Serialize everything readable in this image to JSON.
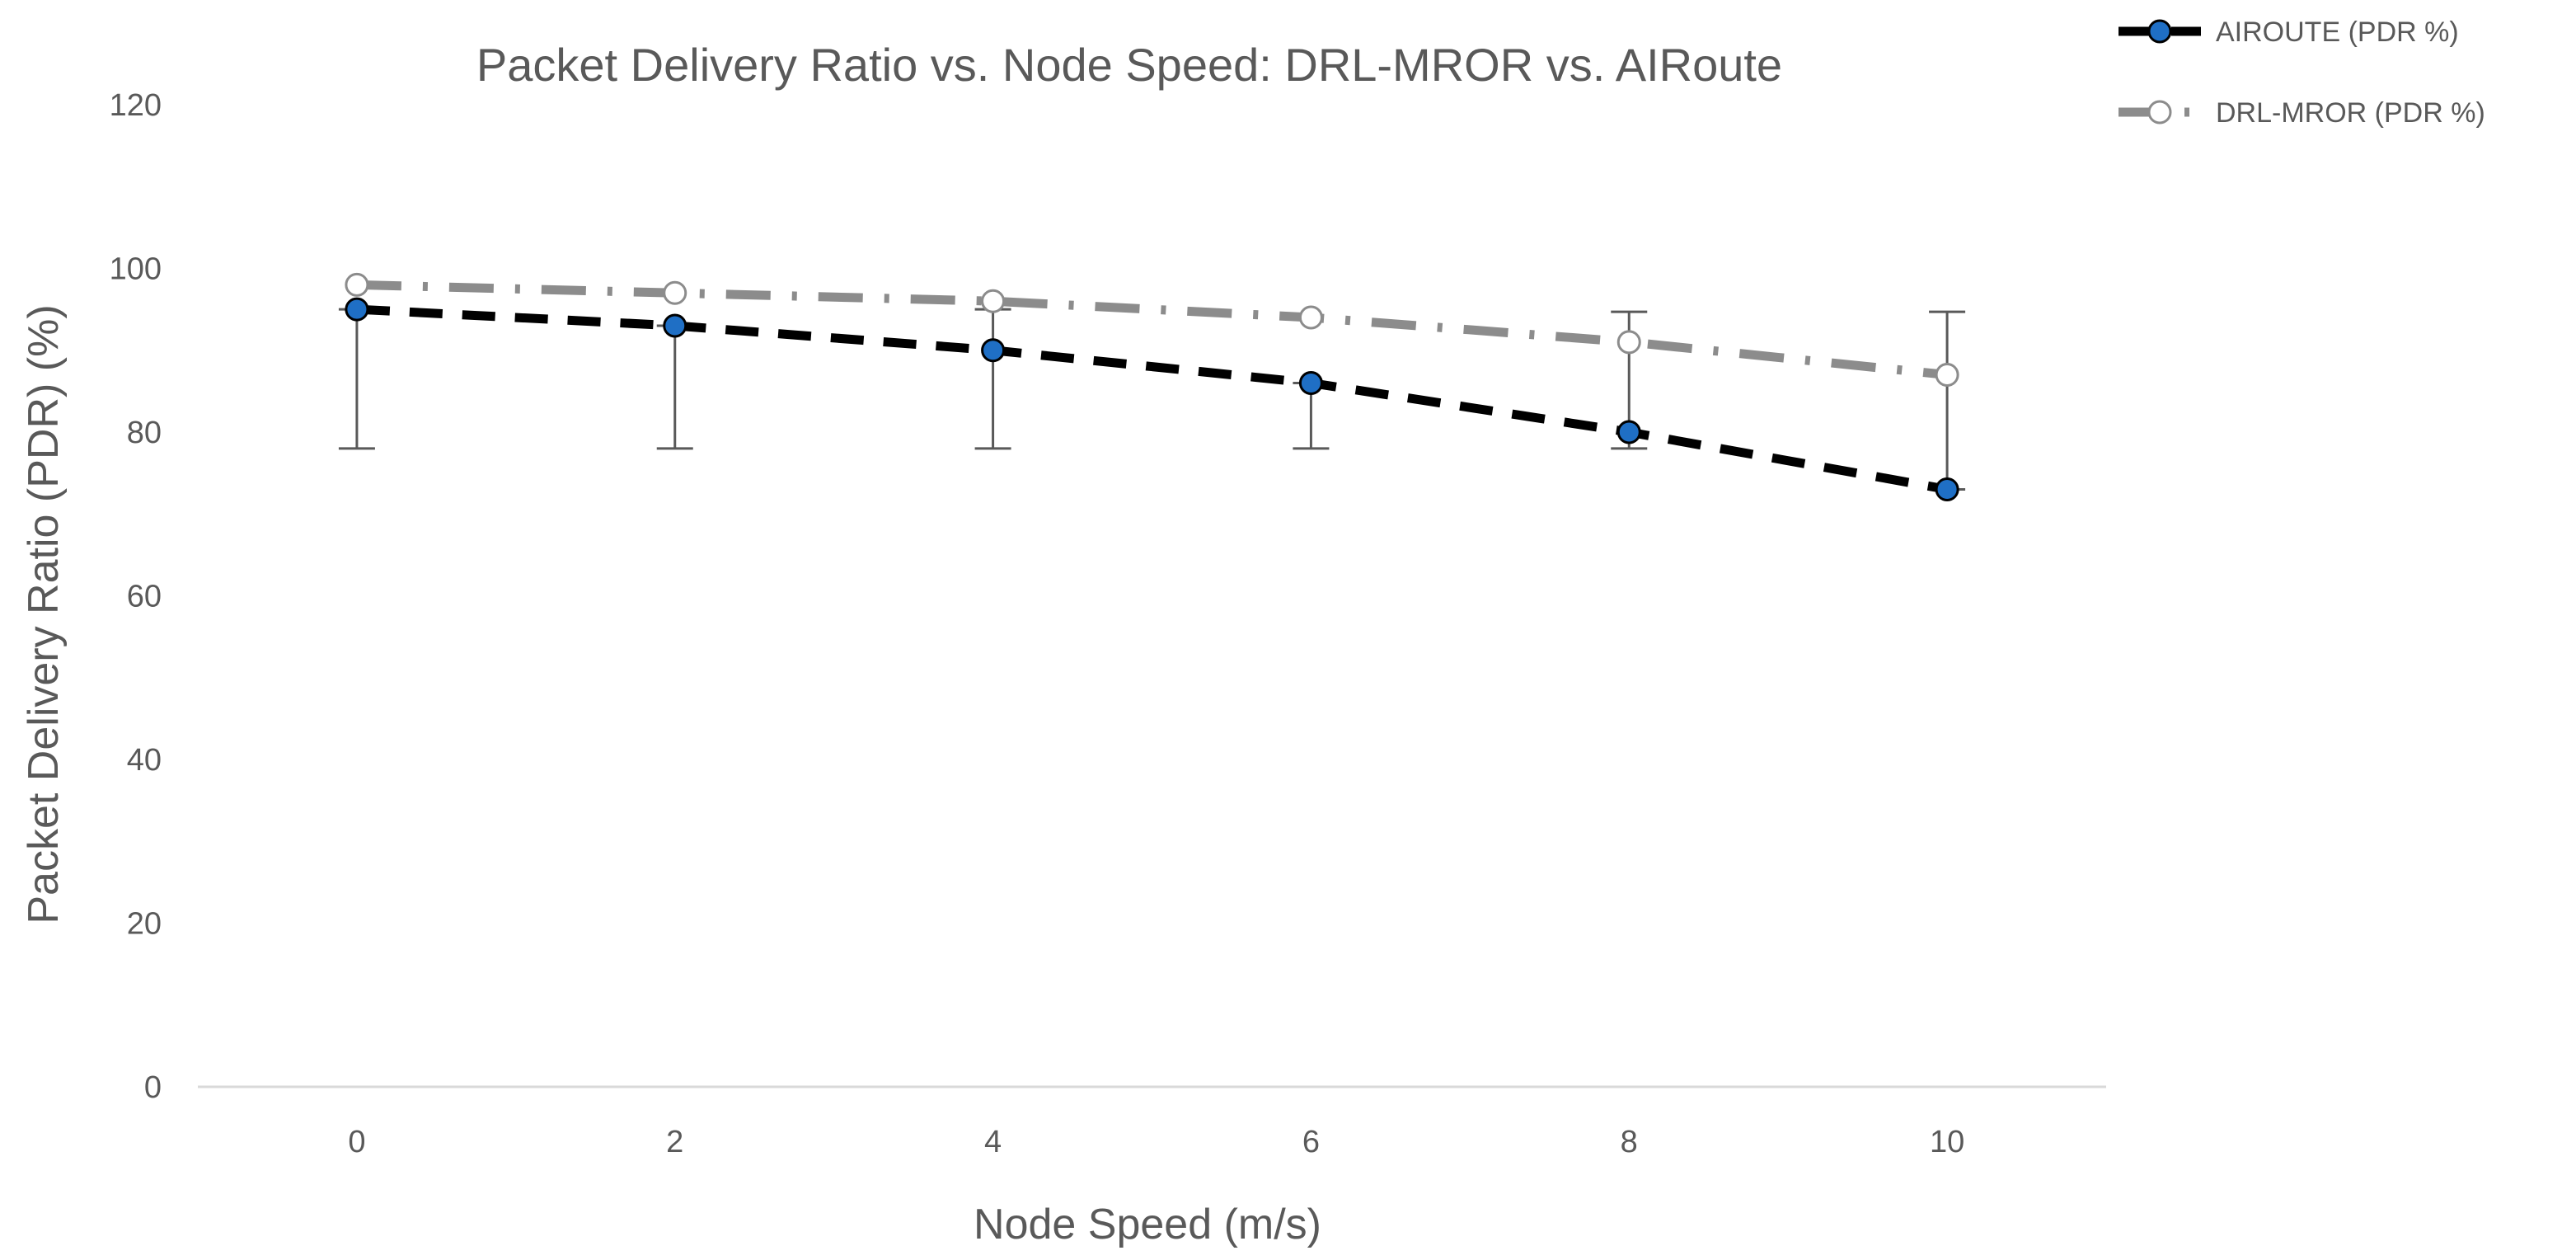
{
  "chart_data": {
    "type": "line",
    "title": "Packet Delivery Ratio vs. Node Speed: DRL-MROR vs. AIRoute",
    "xlabel": "Node Speed (m/s)",
    "ylabel": "Packet Delivery Ratio (PDR) (%)",
    "x": [
      0,
      2,
      4,
      6,
      8,
      10
    ],
    "xlim": [
      -1,
      11
    ],
    "ylim": [
      0,
      120
    ],
    "yticks": [
      0,
      20,
      40,
      60,
      80,
      100,
      120
    ],
    "grid": false,
    "legend_position": "top-right",
    "series": [
      {
        "name": "AIROUTE (PDR %)",
        "values": [
          95,
          93,
          90,
          86,
          80,
          73
        ],
        "line_style": "dashed",
        "line_color": "#000000",
        "marker": "circle",
        "marker_fill": "#1f6fc5",
        "marker_edge": "#000000",
        "error_low": [
          78,
          78,
          78,
          78,
          78,
          73
        ],
        "error_high": [
          95,
          93,
          95,
          86,
          94.7,
          94.7
        ]
      },
      {
        "name": "DRL-MROR (PDR %)",
        "values": [
          98,
          97,
          96,
          94,
          91,
          87
        ],
        "line_style": "dash-dot",
        "line_color": "#8c8c8c",
        "marker": "circle",
        "marker_fill": "#ffffff",
        "marker_edge": "#8c8c8c"
      }
    ]
  },
  "colors": {
    "text": "#595959",
    "axis": "#d9d9d9",
    "error_bar": "#595959"
  }
}
